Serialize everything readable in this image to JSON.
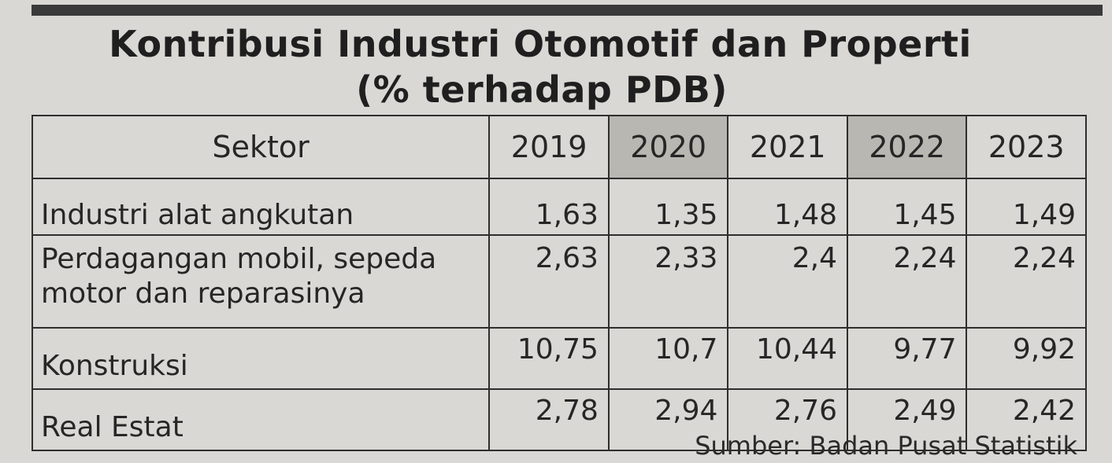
{
  "title_line1": "Kontribusi Industri Otomotif dan Properti",
  "title_line2": "(% terhadap PDB)",
  "source": "Sumber: Badan Pusat Statistik",
  "chart_data": {
    "type": "table",
    "title": "Kontribusi Industri Otomotif dan Properti",
    "subtitle": "(% terhadap PDB)",
    "header": [
      "Sektor",
      "2019",
      "2020",
      "2021",
      "2022",
      "2023"
    ],
    "shaded_columns": [
      "2020",
      "2022"
    ],
    "rows": [
      {
        "sector": "Industri alat angkutan",
        "values": [
          "1,63",
          "1,35",
          "1,48",
          "1,45",
          "1,49"
        ]
      },
      {
        "sector_line1": "Perdagangan mobil, sepeda",
        "sector_line2": "motor dan reparasinya",
        "values": [
          "2,63",
          "2,33",
          "2,4",
          "2,24",
          "2,24"
        ]
      },
      {
        "sector": "Konstruksi",
        "values": [
          "10,75",
          "10,7",
          "10,44",
          "9,77",
          "9,92"
        ]
      },
      {
        "sector": "Real Estat",
        "values": [
          "2,78",
          "2,94",
          "2,76",
          "2,49",
          "2,42"
        ]
      }
    ]
  }
}
